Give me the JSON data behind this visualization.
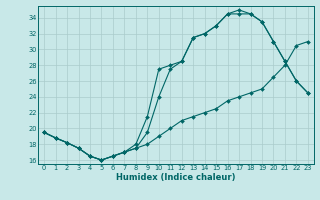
{
  "xlabel": "Humidex (Indice chaleur)",
  "bg_color": "#c8e8e8",
  "grid_color": "#aacccc",
  "line_color": "#006666",
  "xlim": [
    -0.5,
    23.5
  ],
  "ylim": [
    15.5,
    35.5
  ],
  "yticks": [
    16,
    18,
    20,
    22,
    24,
    26,
    28,
    30,
    32,
    34
  ],
  "xticks": [
    0,
    1,
    2,
    3,
    4,
    5,
    6,
    7,
    8,
    9,
    10,
    11,
    12,
    13,
    14,
    15,
    16,
    17,
    18,
    19,
    20,
    21,
    22,
    23
  ],
  "curve1_x": [
    0,
    1,
    2,
    3,
    4,
    5,
    6,
    7,
    8,
    9,
    10,
    11,
    12,
    13,
    14,
    15,
    16,
    17,
    18,
    19,
    20,
    21,
    22,
    23
  ],
  "curve1_y": [
    19.5,
    18.8,
    18.2,
    17.5,
    16.5,
    16.0,
    16.5,
    17.0,
    18.0,
    21.5,
    27.5,
    28.0,
    28.5,
    31.5,
    32.0,
    33.0,
    34.5,
    35.0,
    34.5,
    33.5,
    31.0,
    28.5,
    26.0,
    24.5
  ],
  "curve2_x": [
    0,
    1,
    2,
    3,
    4,
    5,
    6,
    7,
    8,
    9,
    10,
    11,
    12,
    13,
    14,
    15,
    16,
    17,
    18,
    19,
    20,
    21,
    22,
    23
  ],
  "curve2_y": [
    19.5,
    18.8,
    18.2,
    17.5,
    16.5,
    16.0,
    16.5,
    17.0,
    17.5,
    18.0,
    19.0,
    20.0,
    21.0,
    21.5,
    22.0,
    22.5,
    23.5,
    24.0,
    24.5,
    25.0,
    26.5,
    28.0,
    30.5,
    31.0
  ],
  "curve3_x": [
    0,
    1,
    2,
    3,
    4,
    5,
    6,
    7,
    8,
    9,
    10,
    11,
    12,
    13,
    14,
    15,
    16,
    17,
    18,
    19,
    20,
    21,
    22,
    23
  ],
  "curve3_y": [
    19.5,
    18.8,
    18.2,
    17.5,
    16.5,
    16.0,
    16.5,
    17.0,
    17.5,
    19.5,
    24.0,
    27.5,
    28.5,
    31.5,
    32.0,
    33.0,
    34.5,
    34.5,
    34.5,
    33.5,
    31.0,
    28.5,
    26.0,
    24.5
  ]
}
